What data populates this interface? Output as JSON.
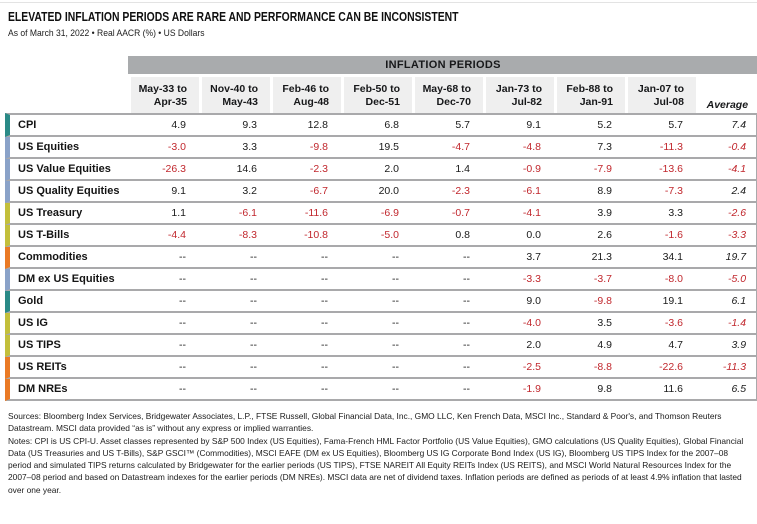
{
  "page": {
    "title": "ELEVATED INFLATION PERIODS ARE RARE AND PERFORMANCE CAN BE INCONSISTENT",
    "subtitle": "As of March 31, 2022 • Real AACR (%) • US Dollars"
  },
  "table": {
    "band_label": "INFLATION PERIODS",
    "column_lines": [
      [
        "May-33 to",
        "Apr-35"
      ],
      [
        "Nov-40 to",
        "May-43"
      ],
      [
        "Feb-46 to",
        "Aug-48"
      ],
      [
        "Feb-50 to",
        "Dec-51"
      ],
      [
        "May-68 to",
        "Dec-70"
      ],
      [
        "Jan-73 to",
        "Jul-82"
      ],
      [
        "Feb-88 to",
        "Jan-91"
      ],
      [
        "Jan-07 to",
        "Jul-08"
      ]
    ],
    "average_label": "Average",
    "missing_marker": "--"
  },
  "chart_data": {
    "type": "table",
    "title": "ELEVATED INFLATION PERIODS ARE RARE AND PERFORMANCE CAN BE INCONSISTENT",
    "unit": "Real AACR (%), US Dollars, as of March 31, 2022",
    "columns": [
      "May-33 to Apr-35",
      "Nov-40 to May-43",
      "Feb-46 to Aug-48",
      "Feb-50 to Dec-51",
      "May-68 to Dec-70",
      "Jan-73 to Jul-82",
      "Feb-88 to Jan-91",
      "Jan-07 to Jul-08",
      "Average"
    ],
    "rows": [
      {
        "label": "CPI",
        "color": "#2a8a87",
        "values": [
          4.9,
          9.3,
          12.8,
          6.8,
          5.7,
          9.1,
          5.2,
          5.7
        ],
        "average": 7.4
      },
      {
        "label": "US Equities",
        "color": "#8aa2c8",
        "values": [
          -3.0,
          3.3,
          -9.8,
          19.5,
          -4.7,
          -4.8,
          7.3,
          -11.3
        ],
        "average": -0.4
      },
      {
        "label": "US Value Equities",
        "color": "#8aa2c8",
        "values": [
          -26.3,
          14.6,
          -2.3,
          2.0,
          1.4,
          -0.9,
          -7.9,
          -13.6
        ],
        "average": -4.1
      },
      {
        "label": "US Quality Equities",
        "color": "#8aa2c8",
        "values": [
          9.1,
          3.2,
          -6.7,
          20.0,
          -2.3,
          -6.1,
          8.9,
          -7.3
        ],
        "average": 2.4
      },
      {
        "label": "US Treasury",
        "color": "#c3bf3b",
        "values": [
          1.1,
          -6.1,
          -11.6,
          -6.9,
          -0.7,
          -4.1,
          3.9,
          3.3
        ],
        "average": -2.6
      },
      {
        "label": "US T-Bills",
        "color": "#c3bf3b",
        "values": [
          -4.4,
          -8.3,
          -10.8,
          -5.0,
          0.8,
          0.0,
          2.6,
          -1.6
        ],
        "average": -3.3
      },
      {
        "label": "Commodities",
        "color": "#ea7a25",
        "values": [
          null,
          null,
          null,
          null,
          null,
          3.7,
          21.3,
          34.1
        ],
        "average": 19.7
      },
      {
        "label": "DM ex US Equities",
        "color": "#8aa2c8",
        "values": [
          null,
          null,
          null,
          null,
          null,
          -3.3,
          -3.7,
          -8.0
        ],
        "average": -5.0
      },
      {
        "label": "Gold",
        "color": "#2a8a87",
        "values": [
          null,
          null,
          null,
          null,
          null,
          9.0,
          -9.8,
          19.1
        ],
        "average": 6.1
      },
      {
        "label": "US IG",
        "color": "#c3bf3b",
        "values": [
          null,
          null,
          null,
          null,
          null,
          -4.0,
          3.5,
          -3.6
        ],
        "average": -1.4
      },
      {
        "label": "US TIPS",
        "color": "#c3bf3b",
        "values": [
          null,
          null,
          null,
          null,
          null,
          2.0,
          4.9,
          4.7
        ],
        "average": 3.9
      },
      {
        "label": "US REITs",
        "color": "#ea7a25",
        "values": [
          null,
          null,
          null,
          null,
          null,
          -2.5,
          -8.8,
          -22.6
        ],
        "average": -11.3
      },
      {
        "label": "DM NREs",
        "color": "#ea7a25",
        "values": [
          null,
          null,
          null,
          null,
          null,
          -1.9,
          9.8,
          11.6
        ],
        "average": 6.5
      }
    ]
  },
  "footnotes": {
    "sources": "Sources: Bloomberg Index Services, Bridgewater Associates, L.P., FTSE Russell, Global Financial Data, Inc., GMO LLC, Ken French Data, MSCI Inc., Standard & Poor's, and Thomson Reuters Datastream. MSCI data provided “as is” without any express or implied warranties.",
    "notes": "Notes: CPI is US CPI-U. Asset classes represented by S&P 500 Index (US Equities), Fama-French HML Factor Portfolio (US Value Equities), GMO calculations (US Quality Equities), Global Financial Data (US Treasuries and US T-Bills), S&P GSCI™ (Commodities), MSCI EAFE (DM ex US Equities), Bloomberg US IG Corporate Bond Index (US IG), Bloomberg US TIPS Index for the 2007–08 period and simulated TIPS returns calculated by Bridgewater for the earlier periods (US TIPS), FTSE NAREIT All Equity REITs Index (US REITS), and MSCI World Natural Resources Index for the 2007–08 period and based on Datastream indexes for the earlier periods (DM NREs). MSCI data are net of dividend taxes. Inflation periods are defined as periods of at least 4.9% inflation that lasted over one year."
  },
  "colors": {
    "band_gray": "#a9abad",
    "header_cell_bg": "#efefef",
    "separator_gray": "#a9a9ab",
    "negative_value": "#c1272d",
    "category_inflation_teal": "#2a8a87",
    "category_equities_blue": "#8aa2c8",
    "category_bonds_gold": "#c3bf3b",
    "category_real_assets_orange": "#ea7a25"
  }
}
